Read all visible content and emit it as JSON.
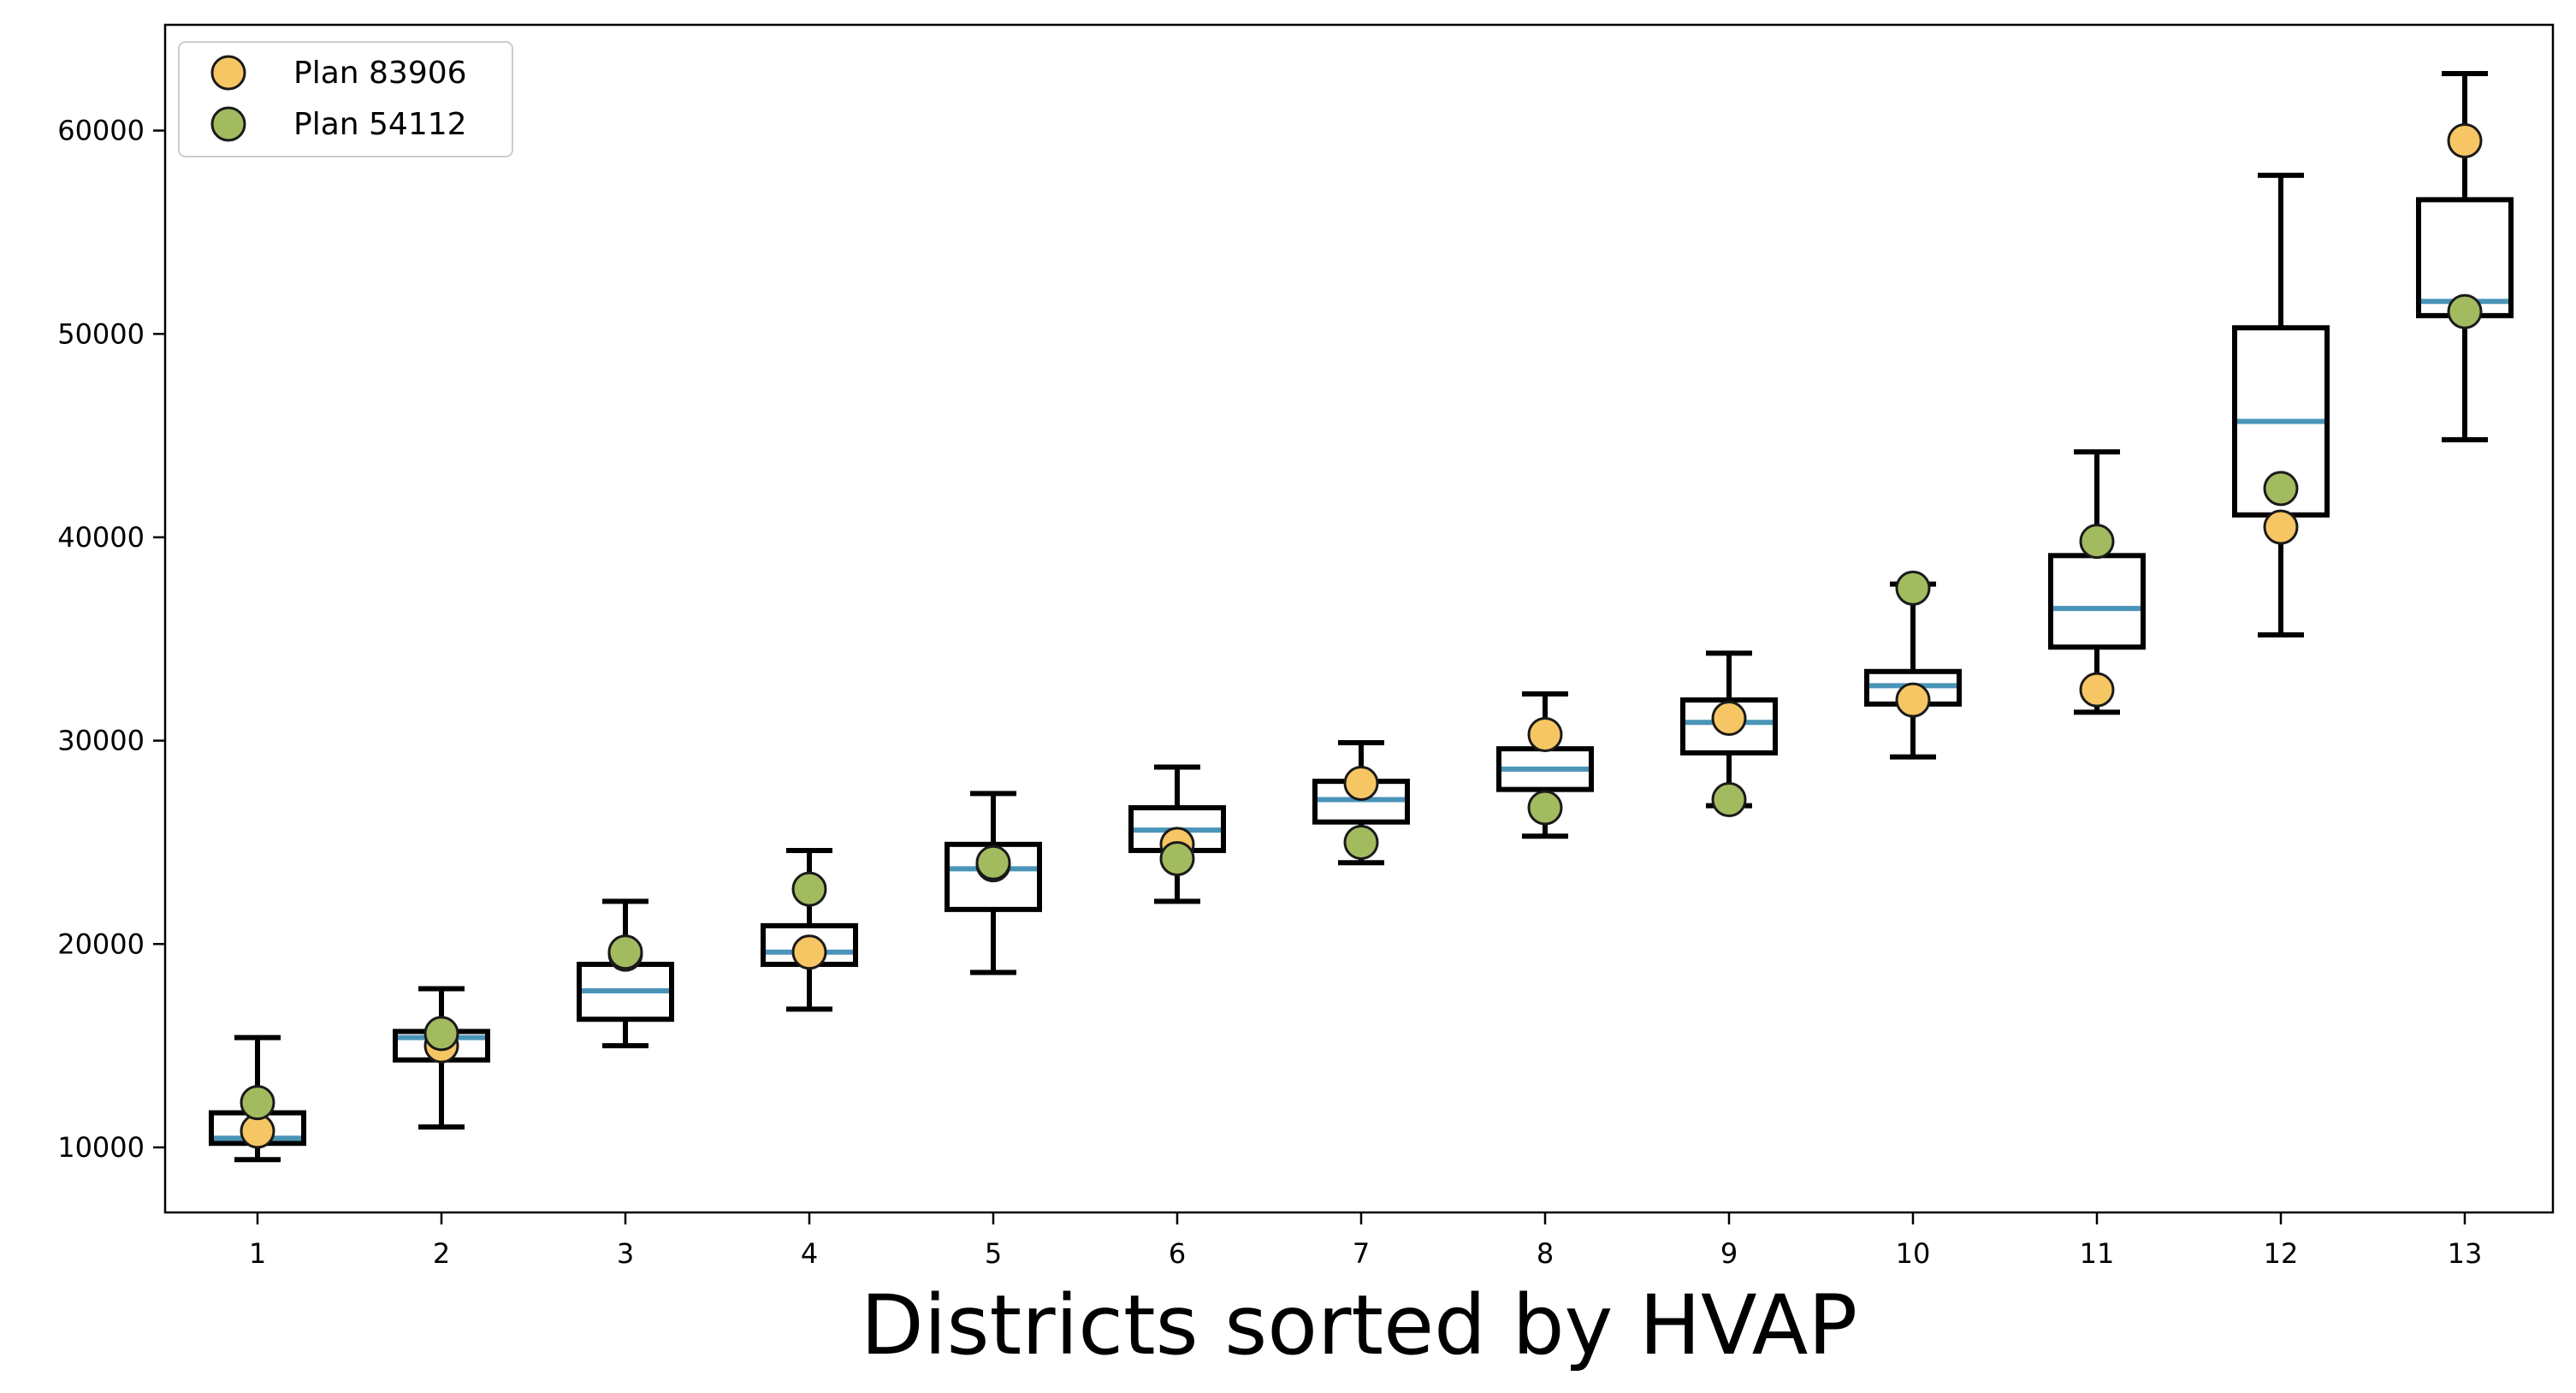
{
  "chart_data": {
    "type": "box",
    "xlabel": "Districts sorted by HVAP",
    "ylabel": "",
    "title": "",
    "categories": [
      "1",
      "2",
      "3",
      "4",
      "5",
      "6",
      "7",
      "8",
      "9",
      "10",
      "11",
      "12",
      "13"
    ],
    "ylim": [
      6800,
      65200
    ],
    "yticks": [
      10000,
      20000,
      30000,
      40000,
      50000,
      60000
    ],
    "ytick_labels": [
      "10000",
      "20000",
      "30000",
      "40000",
      "50000",
      "60000"
    ],
    "grid": false,
    "boxes": [
      {
        "whislo": 9400,
        "q1": 10200,
        "med": 10450,
        "q3": 11700,
        "whishi": 15400
      },
      {
        "whislo": 11000,
        "q1": 14300,
        "med": 15400,
        "q3": 15700,
        "whishi": 17800
      },
      {
        "whislo": 15000,
        "q1": 16300,
        "med": 17700,
        "q3": 19000,
        "whishi": 22100
      },
      {
        "whislo": 16800,
        "q1": 19000,
        "med": 19600,
        "q3": 20900,
        "whishi": 24600
      },
      {
        "whislo": 18600,
        "q1": 21700,
        "med": 23700,
        "q3": 24900,
        "whishi": 27400
      },
      {
        "whislo": 22100,
        "q1": 24600,
        "med": 25600,
        "q3": 26700,
        "whishi": 28700
      },
      {
        "whislo": 24000,
        "q1": 26000,
        "med": 27100,
        "q3": 28000,
        "whishi": 29900
      },
      {
        "whislo": 25300,
        "q1": 27600,
        "med": 28600,
        "q3": 29600,
        "whishi": 32300
      },
      {
        "whislo": 26800,
        "q1": 29400,
        "med": 30900,
        "q3": 32000,
        "whishi": 34300
      },
      {
        "whislo": 29200,
        "q1": 31800,
        "med": 32700,
        "q3": 33400,
        "whishi": 37700
      },
      {
        "whislo": 31400,
        "q1": 34600,
        "med": 36500,
        "q3": 39100,
        "whishi": 44200
      },
      {
        "whislo": 35200,
        "q1": 41100,
        "med": 45700,
        "q3": 50300,
        "whishi": 57800
      },
      {
        "whislo": 44800,
        "q1": 50900,
        "med": 51600,
        "q3": 56600,
        "whishi": 62800
      }
    ],
    "series": [
      {
        "name": "Plan 83906",
        "color": "#f7c664",
        "values": [
          10800,
          15000,
          19500,
          19600,
          23900,
          24900,
          27900,
          30300,
          31100,
          32000,
          32500,
          40500,
          59500
        ]
      },
      {
        "name": "Plan 54112",
        "color": "#a3bb5f",
        "values": [
          12200,
          15600,
          19600,
          22700,
          24000,
          24200,
          25000,
          26700,
          27100,
          37500,
          39800,
          42400,
          51100
        ]
      }
    ],
    "legend_position": "top-left",
    "colors": {
      "median": "#4a94b8",
      "box": "#000000",
      "marker_edge": "#1a1a1a"
    }
  }
}
